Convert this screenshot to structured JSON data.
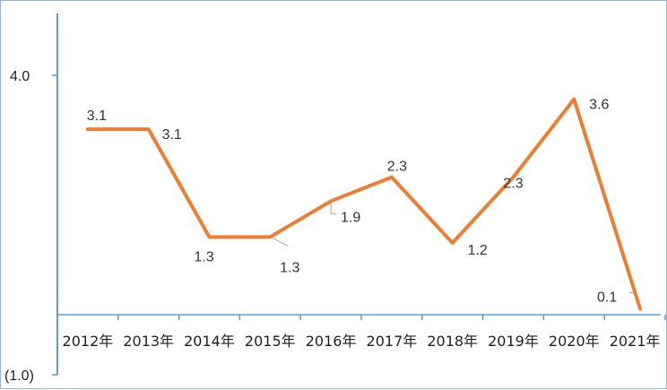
{
  "chart_data": {
    "type": "line",
    "categories": [
      "2012年",
      "2013年",
      "2014年",
      "2015年",
      "2016年",
      "2017年",
      "2018年",
      "2019年",
      "2020年",
      "2021年"
    ],
    "values": [
      3.1,
      3.1,
      1.3,
      1.3,
      1.9,
      2.3,
      1.2,
      2.3,
      3.6,
      0.1
    ],
    "data_labels": [
      "3.1",
      "3.1",
      "1.3",
      "1.3",
      "1.9",
      "2.3",
      "1.2",
      "2.3",
      "3.6",
      "0.1"
    ],
    "y_ticks": [
      {
        "value": 4.0,
        "label": "4.0"
      },
      {
        "value": -1.0,
        "label": "(1.0)"
      }
    ],
    "ylim": [
      -1.0,
      4.0
    ],
    "grid": false,
    "colors": {
      "line": "#ed7d31",
      "axis": "#5b9bd5",
      "frame": "#8eb4e3",
      "negative_tick": "#c00000",
      "leader": "#a6a6a6"
    }
  }
}
